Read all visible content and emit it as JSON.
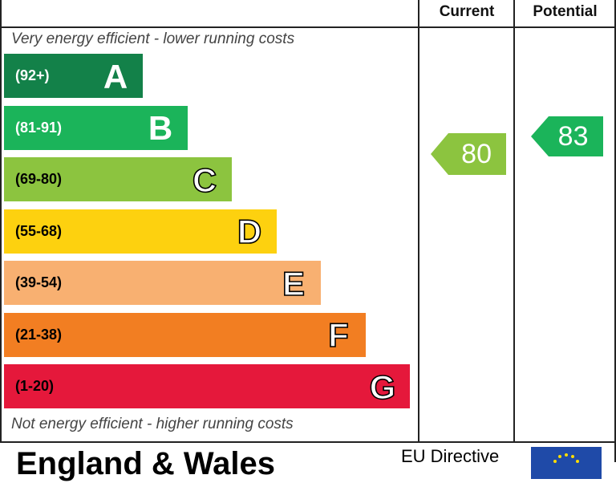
{
  "chart_data": {
    "type": "table",
    "columns": [
      "Current",
      "Potential"
    ],
    "top_note": "Very energy efficient - lower running costs",
    "bottom_note": "Not energy efficient - higher running costs",
    "bands": [
      {
        "letter": "A",
        "range": "(92+)",
        "min": 92,
        "max": 100,
        "color": "#138149",
        "text_color": "#ffffff"
      },
      {
        "letter": "B",
        "range": "(81-91)",
        "min": 81,
        "max": 91,
        "color": "#1bb45a",
        "text_color": "#ffffff"
      },
      {
        "letter": "C",
        "range": "(69-80)",
        "min": 69,
        "max": 80,
        "color": "#8cc43f",
        "text_color": "#000000"
      },
      {
        "letter": "D",
        "range": "(55-68)",
        "min": 55,
        "max": 68,
        "color": "#fdd10f",
        "text_color": "#000000"
      },
      {
        "letter": "E",
        "range": "(39-54)",
        "min": 39,
        "max": 54,
        "color": "#f8b071",
        "text_color": "#000000"
      },
      {
        "letter": "F",
        "range": "(21-38)",
        "min": 21,
        "max": 38,
        "color": "#f27e22",
        "text_color": "#000000"
      },
      {
        "letter": "G",
        "range": "(1-20)",
        "min": 1,
        "max": 20,
        "color": "#e5183b",
        "text_color": "#000000"
      }
    ],
    "current": {
      "value": 80,
      "label": "80",
      "color": "#8cc43f"
    },
    "potential": {
      "value": 83,
      "label": "83",
      "color": "#1bb45a"
    }
  },
  "footer": {
    "title": "England & Wales",
    "eu_label": "EU Directive",
    "eu_flag_color": "#1f4aa8"
  }
}
